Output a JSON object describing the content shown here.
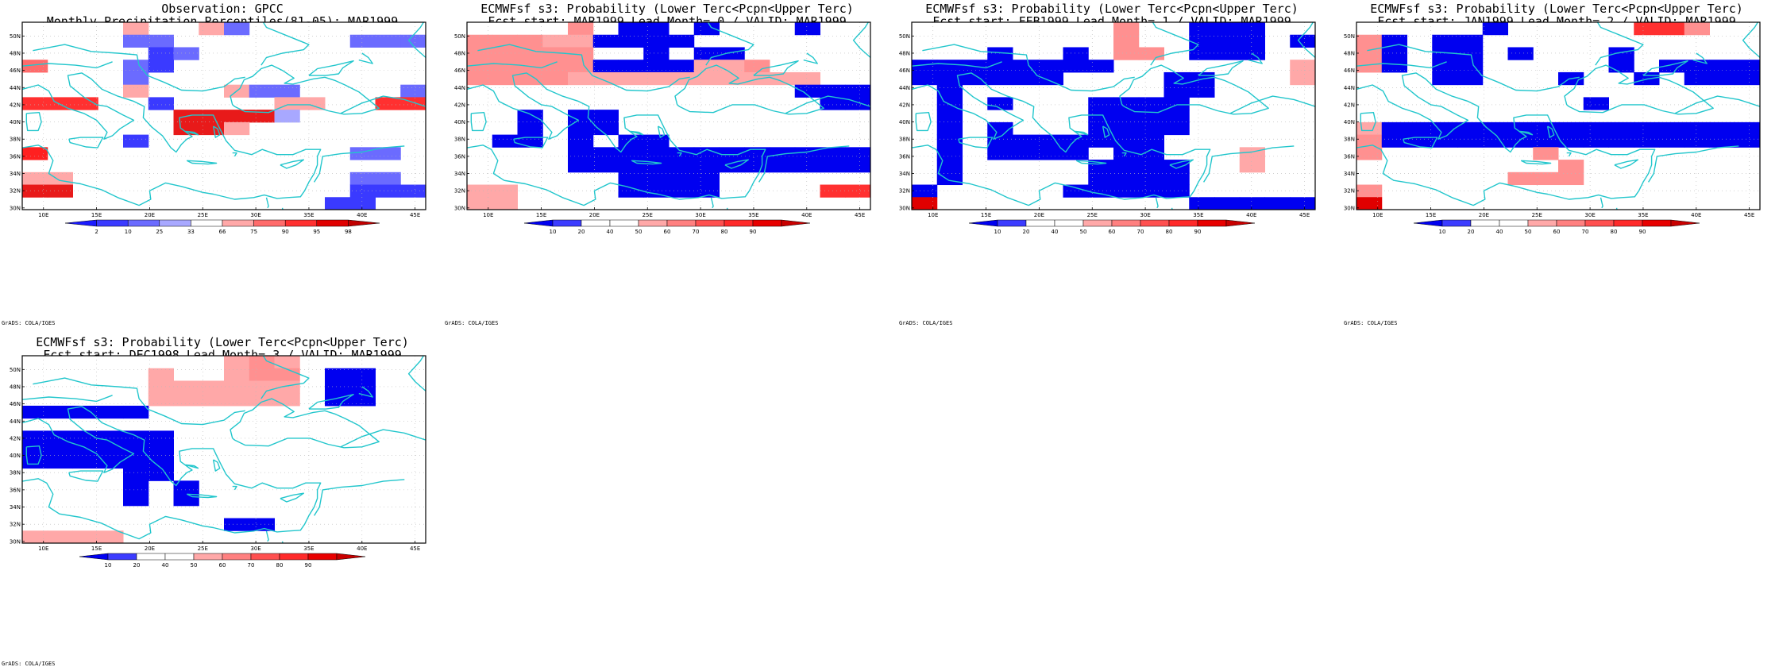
{
  "figure": {
    "credit": "GrADS: COLA/IGES",
    "lat_labels": [
      "30N",
      "32N",
      "34N",
      "36N",
      "38N",
      "40N",
      "42N",
      "44N",
      "46N",
      "48N",
      "50N"
    ],
    "lon_labels": [
      "10E",
      "15E",
      "20E",
      "25E",
      "30E",
      "35E",
      "40E",
      "45E"
    ]
  },
  "colors": {
    "land_outline": "#22c6cc",
    "obs_scale": [
      "#1a1aff",
      "#3a3aff",
      "#6b6bff",
      "#a8a8ff",
      "#ffffff",
      "#ffa8a8",
      "#ff6b6b",
      "#ff3030",
      "#e00000",
      "#c00000"
    ],
    "fcst_scale": [
      "#0000f0",
      "#3c3cff",
      "#ffffff",
      "#ffffff",
      "#ffa8a8",
      "#ff8080",
      "#ff5050",
      "#ff2a2a",
      "#e80000",
      "#c80000"
    ]
  },
  "panels": [
    {
      "id": "obs",
      "title_line1": "Observation: GPCC",
      "title_line2": "Monthly Precipitation Percentiles(81-05): MAR1999",
      "colorbar_labels": [
        "2",
        "10",
        "25",
        "33",
        "66",
        "75",
        "90",
        "95",
        "98"
      ],
      "colorbar_kind": "obs",
      "grid": [
        "0000500530000000",
        "0000330000000333",
        "0000013000000000",
        "6000310000000000",
        "0000300000000000",
        "0000500053300003",
        "8880010000550088",
        "0000007777200000",
        "0000007750000000",
        "0000100000000000",
        "9000000000000330",
        "0000000000000000",
        "5500000000000330",
        "7700000000000111",
        "0000000000001100"
      ]
    },
    {
      "id": "lead0",
      "title_line1": "ECMWFsf s3: Probability (Lower Terc<Pcpn<Upper Terc)",
      "title_line2": "Fcst start: MAR1999   Lead Month= 0 / VALID: MAR1999",
      "colorbar_labels": [
        "10",
        "20",
        "40",
        "50",
        "60",
        "70",
        "80",
        "90"
      ],
      "colorbar_kind": "fcst",
      "grid": [
        "0000501101000100",
        "5554411110000000",
        "5555500101100000",
        "5555511114450000",
        "5555444444444400",
        "0000000000000111",
        "0000000000000011",
        "0010110000000000",
        "0010110000000000",
        "0110101100000000",
        "0000111111111111",
        "0000111111111111",
        "0000001111000000",
        "4400001111000066",
        "4400000000000000"
      ]
    },
    {
      "id": "lead1",
      "title_line1": "ECMWFsf s3: Probability (Lower Terc<Pcpn<Upper Terc)",
      "title_line2": "Fcst start: FEB1999   Lead Month= 1 / VALID: MAR1999",
      "colorbar_labels": [
        "10",
        "20",
        "40",
        "50",
        "60",
        "70",
        "80",
        "90"
      ],
      "colorbar_kind": "fcst",
      "grid": [
        "0000000050011100",
        "0000000050011101",
        "0001001055011100",
        "1111111100000004",
        "1111110000110004",
        "0100000000110000",
        "0101000111100000",
        "0100000111100000",
        "0101000111100000",
        "0101111111000000",
        "0101111011000400",
        "0100000111100400",
        "0100000111100000",
        "1000001111100000",
        "8000000000011111"
      ]
    },
    {
      "id": "lead2",
      "title_line1": "ECMWFsf s3: Probability (Lower Terc<Pcpn<Upper Terc)",
      "title_line2": "Fcst start: JAN1999   Lead Month= 2 / VALID: MAR1999",
      "colorbar_labels": [
        "10",
        "20",
        "40",
        "50",
        "60",
        "70",
        "80",
        "90"
      ],
      "colorbar_kind": "fcst",
      "grid": [
        "0000010000066500",
        "5101100000000000",
        "5101101000100000",
        "5101100000101111",
        "0001100010010111",
        "0000000000000000",
        "0000000001000000",
        "0000000000000000",
        "4111111111111111",
        "5111111111111111",
        "5000000500000000",
        "0000000050000000",
        "0000005550000000",
        "5000000000000000",
        "8000000000000000"
      ]
    },
    {
      "id": "lead3",
      "title_line1": "ECMWFsf s3: Probability (Lower Terc<Pcpn<Upper Terc)",
      "title_line2": "Fcst start: DEC1998   Lead Month= 3 / VALID: MAR1999",
      "colorbar_labels": [
        "10",
        "20",
        "40",
        "50",
        "60",
        "70",
        "80",
        "90"
      ],
      "colorbar_kind": "fcst",
      "grid": [
        "0000000045400000",
        "0000040045501100",
        "0000044444401100",
        "0000044444401100",
        "1111100000000000",
        "0000000000000000",
        "1111110000000000",
        "1111110000000000",
        "1111110000000000",
        "0000110000000000",
        "0000101000000000",
        "0000101000000000",
        "0000000000000000",
        "0000000011000000",
        "4444000000000000"
      ]
    }
  ]
}
